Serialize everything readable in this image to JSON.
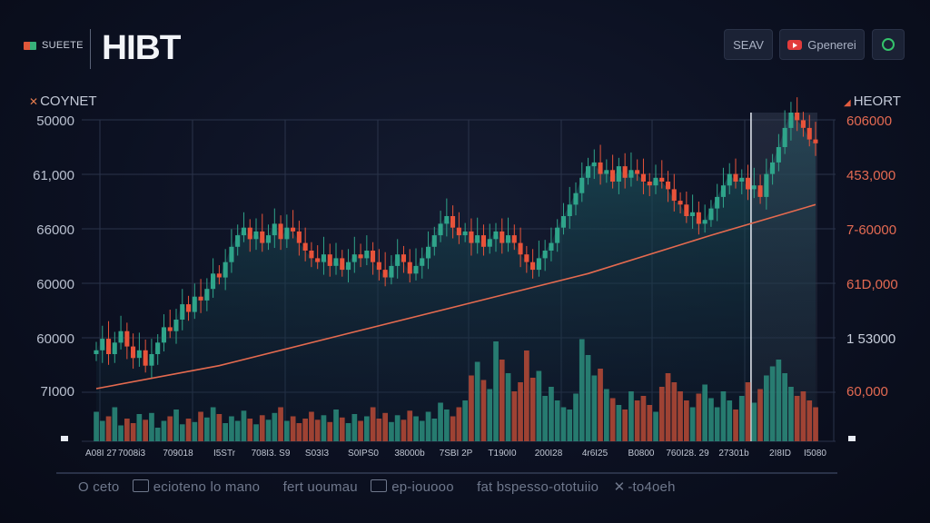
{
  "header": {
    "brand_small": "SUEETE",
    "logo": "HIBT",
    "button_1": "SEAV",
    "button_2": "Gpenerei"
  },
  "panel_labels": {
    "left": "COYNET",
    "right": "HEORT"
  },
  "footer": {
    "items": [
      "O ceto",
      "ecioteno lo mano",
      "fert uoumau",
      "ep-iouooo",
      "fat bspesso-ototuiio",
      "-to4oeh"
    ]
  },
  "colors": {
    "up": "#2fa48a",
    "down": "#e8533a",
    "trend": "#e56a4f",
    "grid": "#2a334a"
  },
  "chart_data": {
    "type": "candlestick",
    "title": "",
    "y_ticks_left": [
      "50000",
      "61,000",
      "66000",
      "60000",
      "60000",
      "7I000"
    ],
    "y_ticks_right": [
      "606000",
      "453,000",
      "7-60000",
      "61D,000",
      "1 53000",
      "60,000"
    ],
    "x_ticks": [
      "A08I 27",
      "7008i3",
      "709018",
      "I5STr",
      "708I3. S9",
      "S03I3",
      "S0IPS0",
      "38000b",
      "7SBI 2P",
      "T190I0",
      "200I28",
      "4r6I25",
      "B0800",
      "760I28. 29",
      "27301b",
      "2I8ID",
      "I5080"
    ],
    "ylim": [
      0,
      100
    ],
    "price_series": [
      50,
      53,
      49,
      52,
      55,
      51,
      48,
      50,
      46,
      49,
      52,
      56,
      55,
      58,
      62,
      60,
      64,
      63,
      66,
      70,
      69,
      73,
      77,
      80,
      82,
      79,
      81,
      78,
      80,
      83,
      79,
      82,
      81,
      78,
      76,
      74,
      73,
      75,
      72,
      74,
      71,
      73,
      75,
      74,
      76,
      73,
      71,
      69,
      72,
      75,
      73,
      70,
      72,
      74,
      77,
      80,
      83,
      85,
      82,
      80,
      81,
      78,
      80,
      77,
      79,
      81,
      78,
      80,
      78,
      75,
      73,
      71,
      74,
      76,
      78,
      82,
      85,
      88,
      91,
      95,
      98,
      99,
      96,
      97,
      94,
      98,
      95,
      97,
      96,
      94,
      93,
      95,
      94,
      92,
      89,
      88,
      85,
      86,
      83,
      84,
      87,
      90,
      93,
      96,
      94,
      95,
      92,
      93,
      90,
      96,
      99,
      103,
      108,
      112,
      110,
      108,
      105,
      104
    ],
    "volume_series": [
      26,
      18,
      22,
      30,
      14,
      20,
      16,
      24,
      19,
      25,
      12,
      18,
      22,
      28,
      15,
      20,
      17,
      26,
      21,
      30,
      24,
      16,
      22,
      18,
      27,
      20,
      15,
      23,
      19,
      25,
      30,
      18,
      22,
      16,
      20,
      26,
      19,
      23,
      17,
      28,
      21,
      16,
      24,
      18,
      22,
      30,
      20,
      25,
      17,
      23,
      19,
      27,
      22,
      18,
      26,
      20,
      34,
      28,
      22,
      30,
      36,
      58,
      70,
      54,
      46,
      88,
      72,
      60,
      44,
      52,
      80,
      56,
      62,
      40,
      48,
      36,
      30,
      28,
      42,
      90,
      76,
      58,
      64,
      46,
      38,
      32,
      28,
      44,
      36,
      40,
      32,
      26,
      48,
      60,
      52,
      44,
      36,
      30,
      42,
      50,
      38,
      30,
      44,
      36,
      28,
      40,
      52,
      34,
      46,
      58,
      66,
      72,
      60,
      48,
      40,
      44,
      36,
      30
    ],
    "trend_line": [
      [
        0,
        36
      ],
      [
        20,
        42
      ],
      [
        40,
        50
      ],
      [
        60,
        58
      ],
      [
        80,
        66
      ],
      [
        100,
        76
      ],
      [
        117,
        84
      ]
    ],
    "highlight_from_index": 107
  }
}
